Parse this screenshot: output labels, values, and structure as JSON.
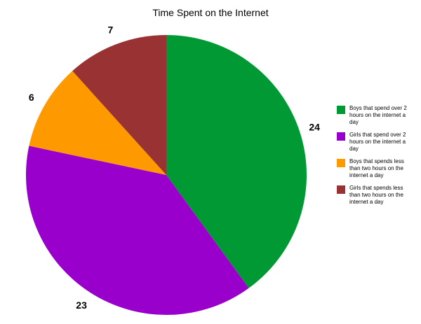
{
  "chart_data": {
    "type": "pie",
    "title": "Time Spent on the Internet",
    "slices": [
      {
        "label": "Boys that spend over 2 hours on the internet a day",
        "value": 24,
        "color": "#009933"
      },
      {
        "label": "Girls that spend over 2 hours on the internet a day",
        "value": 23,
        "color": "#9900cc"
      },
      {
        "label": "Boys that spends less than two hours on the internet a day",
        "value": 6,
        "color": "#ff9900"
      },
      {
        "label": "Girls that spends less than two hours on the internet a day",
        "value": 7,
        "color": "#993333"
      }
    ],
    "legend_position": "right",
    "start_angle": "top",
    "direction": "clockwise"
  }
}
